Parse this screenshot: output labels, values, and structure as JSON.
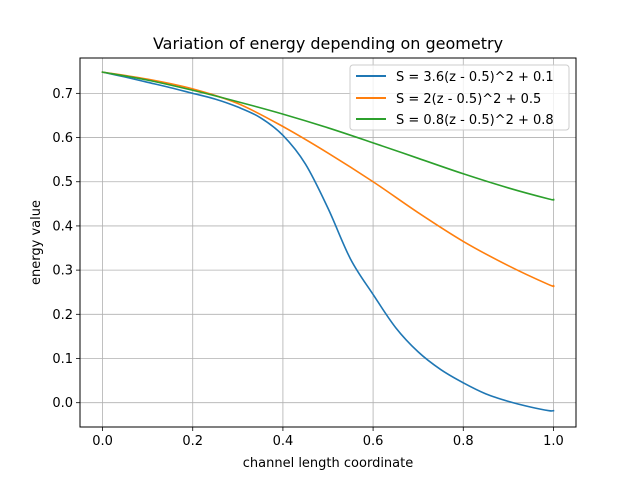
{
  "chart_data": {
    "type": "line",
    "title": "Variation of energy depending on geometry",
    "xlabel": "channel length coordinate",
    "ylabel": "energy value",
    "xlim": [
      -0.05,
      1.05
    ],
    "ylim": [
      -0.055,
      0.78
    ],
    "xticks": [
      0.0,
      0.2,
      0.4,
      0.6,
      0.8,
      1.0
    ],
    "xtick_labels": [
      "0.0",
      "0.2",
      "0.4",
      "0.6",
      "0.8",
      "1.0"
    ],
    "yticks": [
      0.0,
      0.1,
      0.2,
      0.3,
      0.4,
      0.5,
      0.6,
      0.7
    ],
    "ytick_labels": [
      "0.0",
      "0.1",
      "0.2",
      "0.3",
      "0.4",
      "0.5",
      "0.6",
      "0.7"
    ],
    "grid": true,
    "legend_position": "top-right",
    "series": [
      {
        "name": "S = 3.6(z - 0.5)^2 + 0.1",
        "color": "#1f77b4",
        "x": [
          0.0,
          0.05,
          0.1,
          0.15,
          0.2,
          0.25,
          0.3,
          0.35,
          0.4,
          0.45,
          0.5,
          0.55,
          0.6,
          0.65,
          0.7,
          0.75,
          0.8,
          0.85,
          0.9,
          0.95,
          0.99,
          1.0
        ],
        "y": [
          0.748,
          0.737,
          0.725,
          0.713,
          0.7,
          0.687,
          0.669,
          0.645,
          0.605,
          0.54,
          0.44,
          0.325,
          0.245,
          0.17,
          0.115,
          0.075,
          0.045,
          0.02,
          0.003,
          -0.01,
          -0.018,
          -0.018
        ]
      },
      {
        "name": "S = 2(z - 0.5)^2 + 0.5",
        "color": "#ff7f0e",
        "x": [
          0.0,
          0.1,
          0.2,
          0.3,
          0.4,
          0.5,
          0.6,
          0.7,
          0.8,
          0.9,
          0.99,
          1.0
        ],
        "y": [
          0.748,
          0.732,
          0.71,
          0.677,
          0.625,
          0.565,
          0.5,
          0.43,
          0.365,
          0.31,
          0.267,
          0.265
        ]
      },
      {
        "name": "S = 0.8(z - 0.5)^2 + 0.8",
        "color": "#2ca02c",
        "x": [
          0.0,
          0.1,
          0.2,
          0.3,
          0.4,
          0.5,
          0.6,
          0.7,
          0.8,
          0.9,
          0.99,
          1.0
        ],
        "y": [
          0.748,
          0.73,
          0.707,
          0.681,
          0.653,
          0.622,
          0.588,
          0.553,
          0.518,
          0.486,
          0.461,
          0.46
        ]
      }
    ]
  }
}
